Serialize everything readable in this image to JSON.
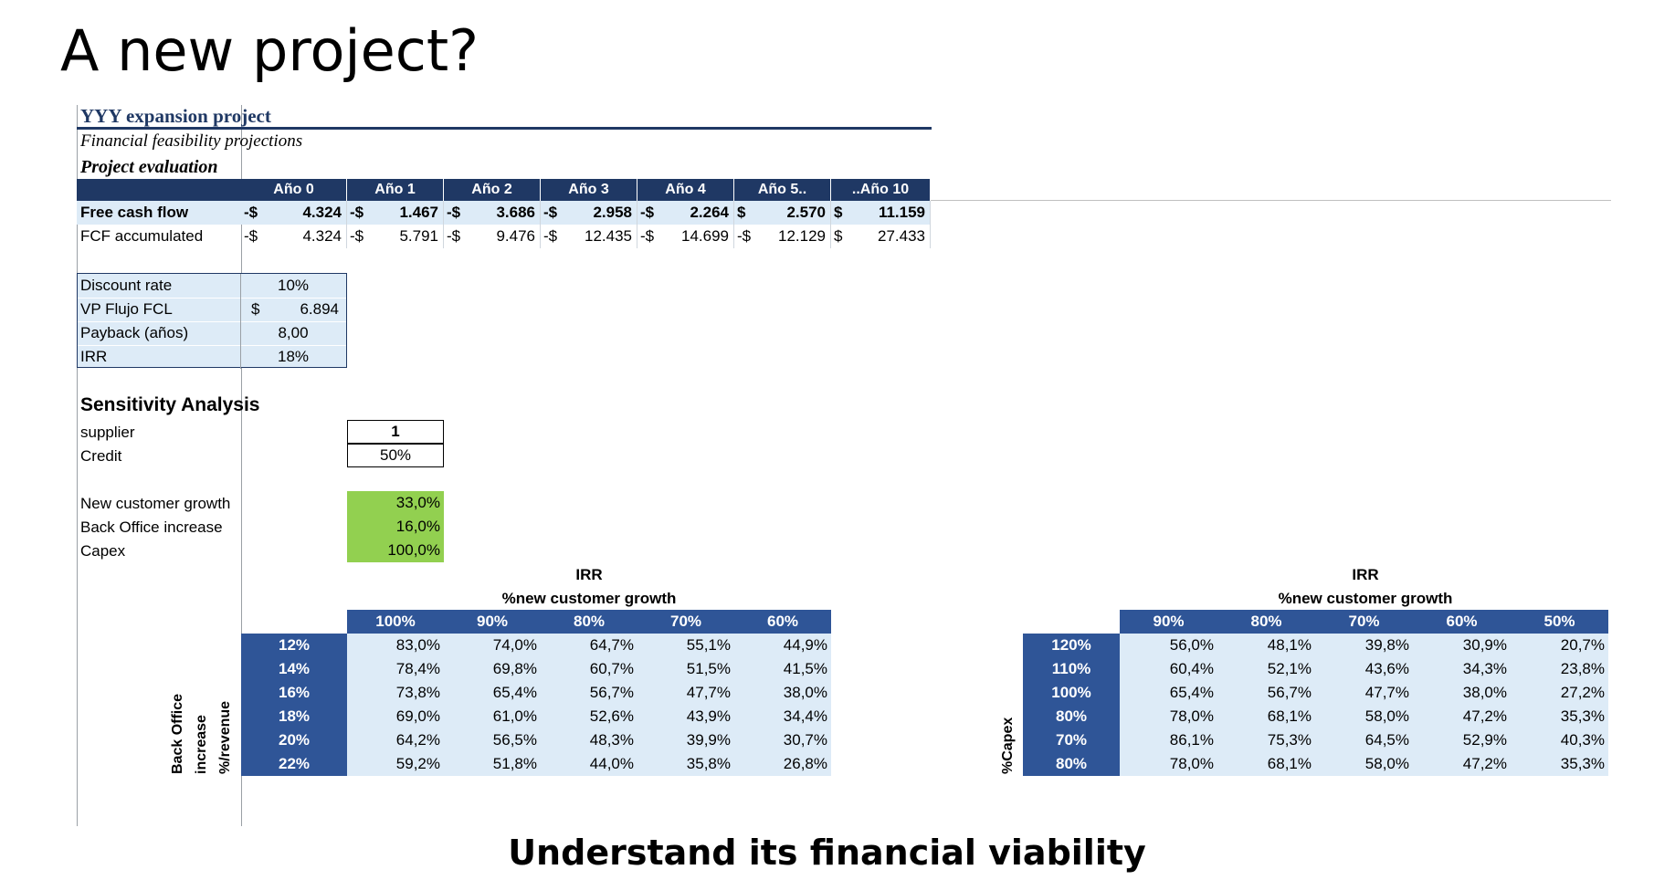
{
  "slide": {
    "title": "A new project?",
    "caption": "Understand its financial viability"
  },
  "sheet": {
    "project_title": "YYY expansion project",
    "subtitle": "Financial feasibility projections",
    "section": "Project evaluation",
    "years": [
      "Año 0",
      "Año 1",
      "Año 2",
      "Año 3",
      "Año 4",
      "Año 5..",
      "..Año 10"
    ],
    "cashflow_rows": [
      {
        "label": "Free cash flow",
        "bold": true,
        "cells": [
          {
            "sym": "-$",
            "val": "4.324"
          },
          {
            "sym": "-$",
            "val": "1.467"
          },
          {
            "sym": "-$",
            "val": "3.686"
          },
          {
            "sym": "-$",
            "val": "2.958"
          },
          {
            "sym": "-$",
            "val": "2.264"
          },
          {
            "sym": "$",
            "val": "2.570"
          },
          {
            "sym": "$",
            "val": "11.159"
          }
        ]
      },
      {
        "label": "FCF  accumulated",
        "bold": false,
        "cells": [
          {
            "sym": "-$",
            "val": "4.324"
          },
          {
            "sym": "-$",
            "val": "5.791"
          },
          {
            "sym": "-$",
            "val": "9.476"
          },
          {
            "sym": "-$",
            "val": "12.435"
          },
          {
            "sym": "-$",
            "val": "14.699"
          },
          {
            "sym": "-$",
            "val": "12.129"
          },
          {
            "sym": "$",
            "val": "27.433"
          }
        ]
      }
    ],
    "metrics": {
      "discount_rate_label": "Discount rate",
      "discount_rate": "10%",
      "vp_label": "VP Flujo FCL",
      "vp_symbol": "$",
      "vp_value": "6.894",
      "payback_label": "Payback (años)",
      "payback_value": "8,00",
      "irr_label": "IRR",
      "irr_value": "18%"
    },
    "sensitivity": {
      "title": "Sensitivity Analysis",
      "supplier_label": "supplier",
      "supplier_value": "1",
      "credit_label": "Credit",
      "credit_value": "50%",
      "growth_label": "New customer growth",
      "growth_value": "33,0%",
      "backoffice_label": "Back Office increase",
      "backoffice_value": "16,0%",
      "capex_label": "Capex",
      "capex_value": "100,0%"
    },
    "table1": {
      "caption": "IRR",
      "subcaption": "%new customer growth",
      "col_headers": [
        "100%",
        "90%",
        "80%",
        "70%",
        "60%"
      ],
      "row_axis_label_1": "Back Office",
      "row_axis_label_2": "increase",
      "row_axis_label_3": "%/revenue",
      "rows": [
        {
          "hdr": "12%",
          "vals": [
            "83,0%",
            "74,0%",
            "64,7%",
            "55,1%",
            "44,9%"
          ]
        },
        {
          "hdr": "14%",
          "vals": [
            "78,4%",
            "69,8%",
            "60,7%",
            "51,5%",
            "41,5%"
          ]
        },
        {
          "hdr": "16%",
          "vals": [
            "73,8%",
            "65,4%",
            "56,7%",
            "47,7%",
            "38,0%"
          ]
        },
        {
          "hdr": "18%",
          "vals": [
            "69,0%",
            "61,0%",
            "52,6%",
            "43,9%",
            "34,4%"
          ]
        },
        {
          "hdr": "20%",
          "vals": [
            "64,2%",
            "56,5%",
            "48,3%",
            "39,9%",
            "30,7%"
          ]
        },
        {
          "hdr": "22%",
          "vals": [
            "59,2%",
            "51,8%",
            "44,0%",
            "35,8%",
            "26,8%"
          ]
        }
      ]
    },
    "table2": {
      "caption": "IRR",
      "subcaption": "%new customer growth",
      "col_headers": [
        "90%",
        "80%",
        "70%",
        "60%",
        "50%"
      ],
      "row_axis_label": "%Capex",
      "rows": [
        {
          "hdr": "120%",
          "vals": [
            "56,0%",
            "48,1%",
            "39,8%",
            "30,9%",
            "20,7%"
          ]
        },
        {
          "hdr": "110%",
          "vals": [
            "60,4%",
            "52,1%",
            "43,6%",
            "34,3%",
            "23,8%"
          ]
        },
        {
          "hdr": "100%",
          "vals": [
            "65,4%",
            "56,7%",
            "47,7%",
            "38,0%",
            "27,2%"
          ]
        },
        {
          "hdr": "80%",
          "vals": [
            "78,0%",
            "68,1%",
            "58,0%",
            "47,2%",
            "35,3%"
          ]
        },
        {
          "hdr": "70%",
          "vals": [
            "86,1%",
            "75,3%",
            "64,5%",
            "52,9%",
            "40,3%"
          ]
        },
        {
          "hdr": "80%",
          "vals": [
            "78,0%",
            "68,1%",
            "58,0%",
            "47,2%",
            "35,3%"
          ]
        }
      ]
    }
  }
}
